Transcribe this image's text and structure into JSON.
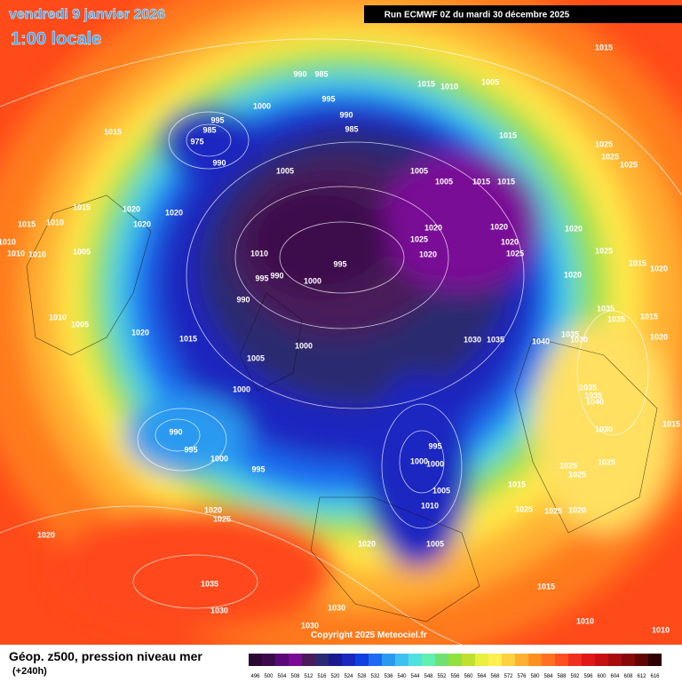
{
  "header": {
    "date": "vendredi 9 janvier 2026",
    "time": "1:00 locale",
    "run": "Run ECMWF 0Z du mardi 30 décembre 2025"
  },
  "map": {
    "pressure_labels": [
      "1015",
      "990",
      "985",
      "995",
      "1015",
      "1010",
      "1005",
      "1000",
      "995",
      "985",
      "975",
      "990",
      "990",
      "985",
      "1015",
      "1015",
      "1025",
      "1025",
      "1025",
      "1005",
      "1005",
      "1005",
      "1015",
      "1015",
      "1015",
      "1020",
      "1020",
      "1020",
      "1015",
      "1010",
      "1020",
      "1020",
      "1020",
      "1025",
      "1020",
      "1010",
      "1010",
      "1010",
      "1005",
      "1020",
      "1025",
      "1010",
      "995",
      "1000",
      "995",
      "990",
      "1025",
      "1015",
      "1020",
      "1020",
      "990",
      "1035",
      "1035",
      "1015",
      "1010",
      "1005",
      "1020",
      "1015",
      "1000",
      "1030",
      "1035",
      "1040",
      "1035",
      "1030",
      "1020",
      "1005",
      "1000",
      "1035",
      "1035",
      "1040",
      "990",
      "995",
      "1000",
      "995",
      "1030",
      "1015",
      "995",
      "1000",
      "1000",
      "1005",
      "1025",
      "1025",
      "1025",
      "1015",
      "1010",
      "1025",
      "1025",
      "1020",
      "1020",
      "1025",
      "1020",
      "1020",
      "1005",
      "1035",
      "1015",
      "1030",
      "1030",
      "1010",
      "1010",
      "1030"
    ]
  },
  "footer": {
    "copyright": "Copyright 2025 Meteociel.fr",
    "title": "Géop. z500, pression niveau mer",
    "lead": "(+240h)"
  },
  "legend": {
    "values": [
      496,
      500,
      504,
      508,
      512,
      516,
      520,
      524,
      528,
      532,
      536,
      540,
      544,
      548,
      552,
      556,
      560,
      564,
      568,
      572,
      576,
      580,
      584,
      588,
      592,
      596,
      600,
      604,
      608,
      612,
      616
    ],
    "colors": [
      "#2a0a32",
      "#3c0a4c",
      "#5a0a78",
      "#7a0a96",
      "#4a1a5a",
      "#2a2a70",
      "#1a1a90",
      "#1a28c0",
      "#1040e0",
      "#1e6af0",
      "#2a9af0",
      "#40c0f0",
      "#50e0e0",
      "#60f0b0",
      "#70e070",
      "#90e040",
      "#c0e030",
      "#e8f040",
      "#fff050",
      "#ffd040",
      "#ffb030",
      "#ff9020",
      "#ff7020",
      "#ff5020",
      "#f03020",
      "#e01818",
      "#c81010",
      "#a80c0c",
      "#880808",
      "#600404",
      "#300000"
    ]
  }
}
